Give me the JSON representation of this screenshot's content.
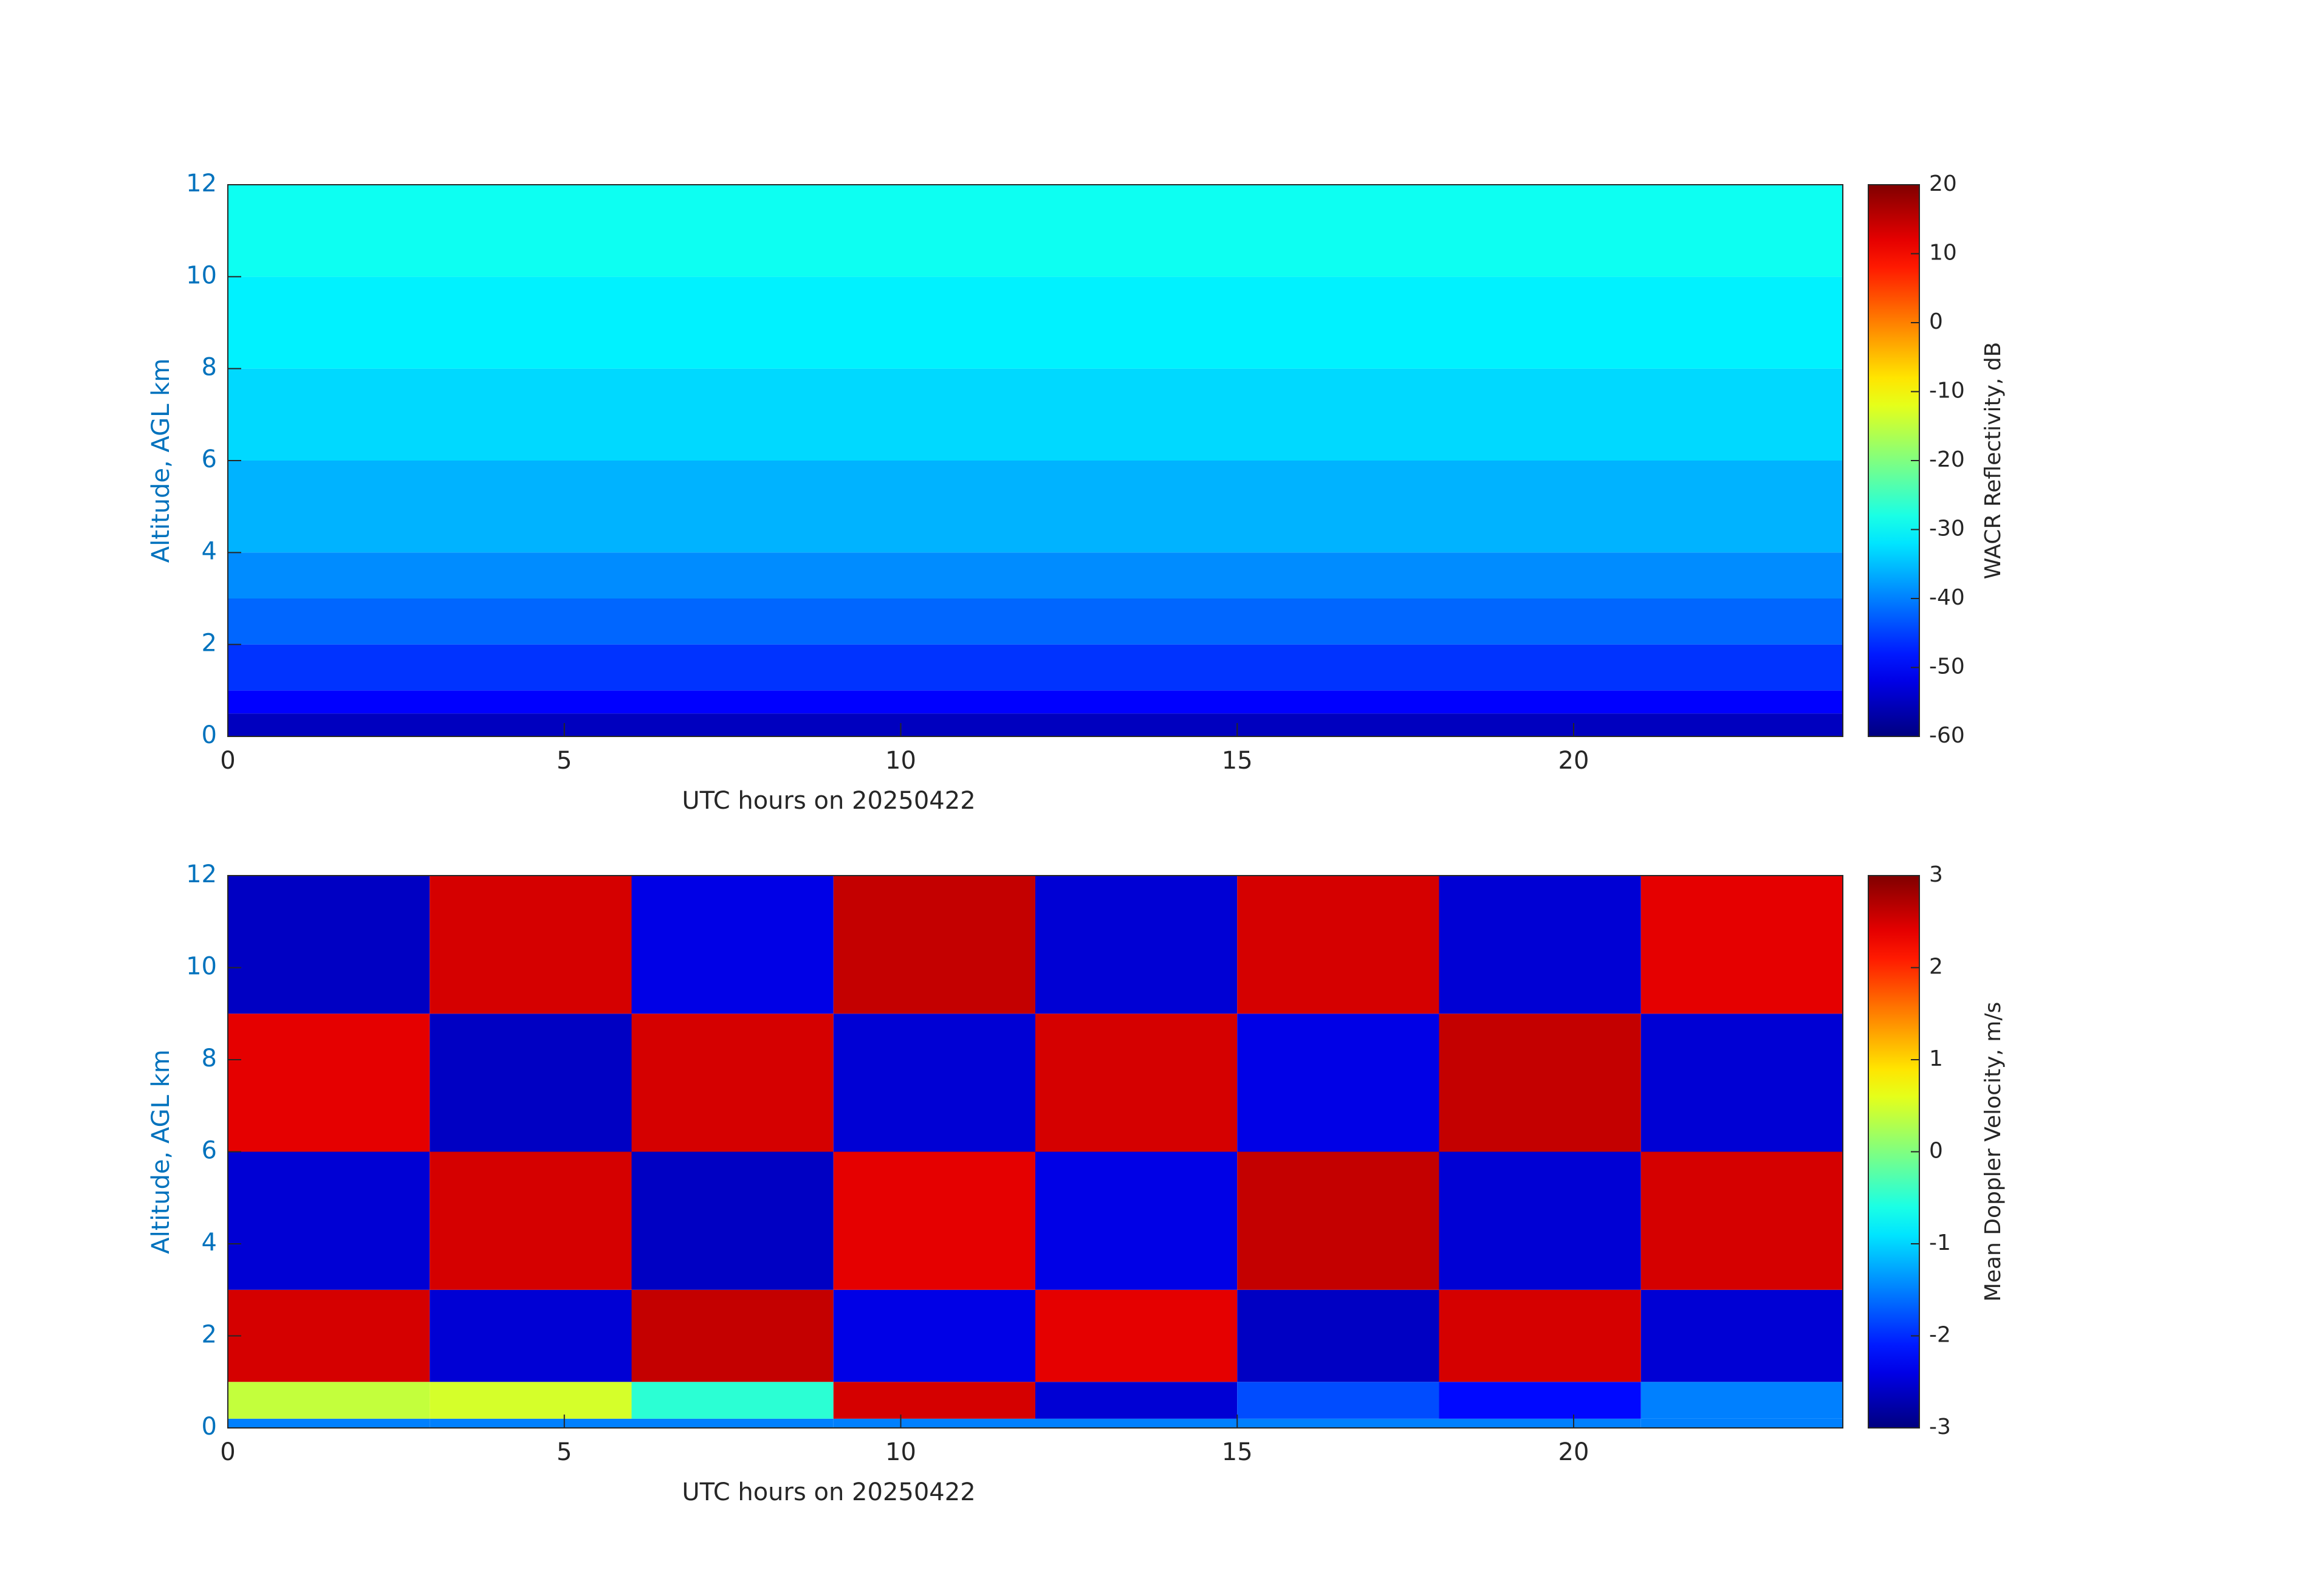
{
  "chart_data": [
    {
      "type": "heatmap",
      "xlabel": "UTC hours on 20250422",
      "ylabel": "Altitude, AGL km",
      "xlim": [
        0,
        24
      ],
      "xticks": [
        0,
        5,
        10,
        15,
        20
      ],
      "ylim": [
        0,
        12
      ],
      "yticks": [
        0,
        2,
        4,
        6,
        8,
        10,
        12
      ],
      "x": [
        0,
        24
      ],
      "y": [
        0,
        0.5,
        1,
        2,
        3,
        4,
        6,
        8,
        10,
        12
      ],
      "z": [
        [
          -55
        ],
        [
          -50
        ],
        [
          -46
        ],
        [
          -42
        ],
        [
          -39
        ],
        [
          -36
        ],
        [
          -33
        ],
        [
          -31
        ],
        [
          -29
        ]
      ],
      "colorbar": {
        "label": "WACR Reflectivity, dB",
        "colormap": "jet",
        "lim": [
          -60,
          20
        ],
        "ticks": [
          -60,
          -50,
          -40,
          -30,
          -20,
          -10,
          0,
          10,
          20
        ]
      }
    },
    {
      "type": "heatmap",
      "xlabel": "UTC hours on 20250422",
      "ylabel": "Altitude, AGL km",
      "xlim": [
        0,
        24
      ],
      "xticks": [
        0,
        5,
        10,
        15,
        20
      ],
      "ylim": [
        0,
        12
      ],
      "yticks": [
        0,
        2,
        4,
        6,
        8,
        10,
        12
      ],
      "x": [
        0,
        3,
        6,
        9,
        12,
        15,
        18,
        21,
        24
      ],
      "y": [
        0,
        0.2,
        1,
        3,
        6,
        9,
        12
      ],
      "z": [
        [
          -1.5,
          -1.5,
          -1.5,
          -1.5,
          -1.5,
          -1.5,
          -1.5,
          -1.5
        ],
        [
          0.4,
          0.5,
          -0.5,
          2.5,
          -2.5,
          -1.8,
          -2.2,
          -1.5
        ],
        [
          2.5,
          -2.5,
          2.6,
          -2.4,
          2.4,
          -2.6,
          2.5,
          -2.5
        ],
        [
          -2.5,
          2.5,
          -2.6,
          2.4,
          -2.4,
          2.6,
          -2.5,
          2.5
        ],
        [
          2.4,
          -2.6,
          2.5,
          -2.5,
          2.5,
          -2.4,
          2.6,
          -2.5
        ],
        [
          -2.6,
          2.5,
          -2.4,
          2.6,
          -2.5,
          2.5,
          -2.5,
          2.4
        ]
      ],
      "colorbar": {
        "label": "Mean Doppler Velocity, m/s",
        "colormap": "jet",
        "lim": [
          -3,
          3
        ],
        "ticks": [
          -3,
          -2,
          -1,
          0,
          1,
          2,
          3
        ]
      }
    }
  ]
}
